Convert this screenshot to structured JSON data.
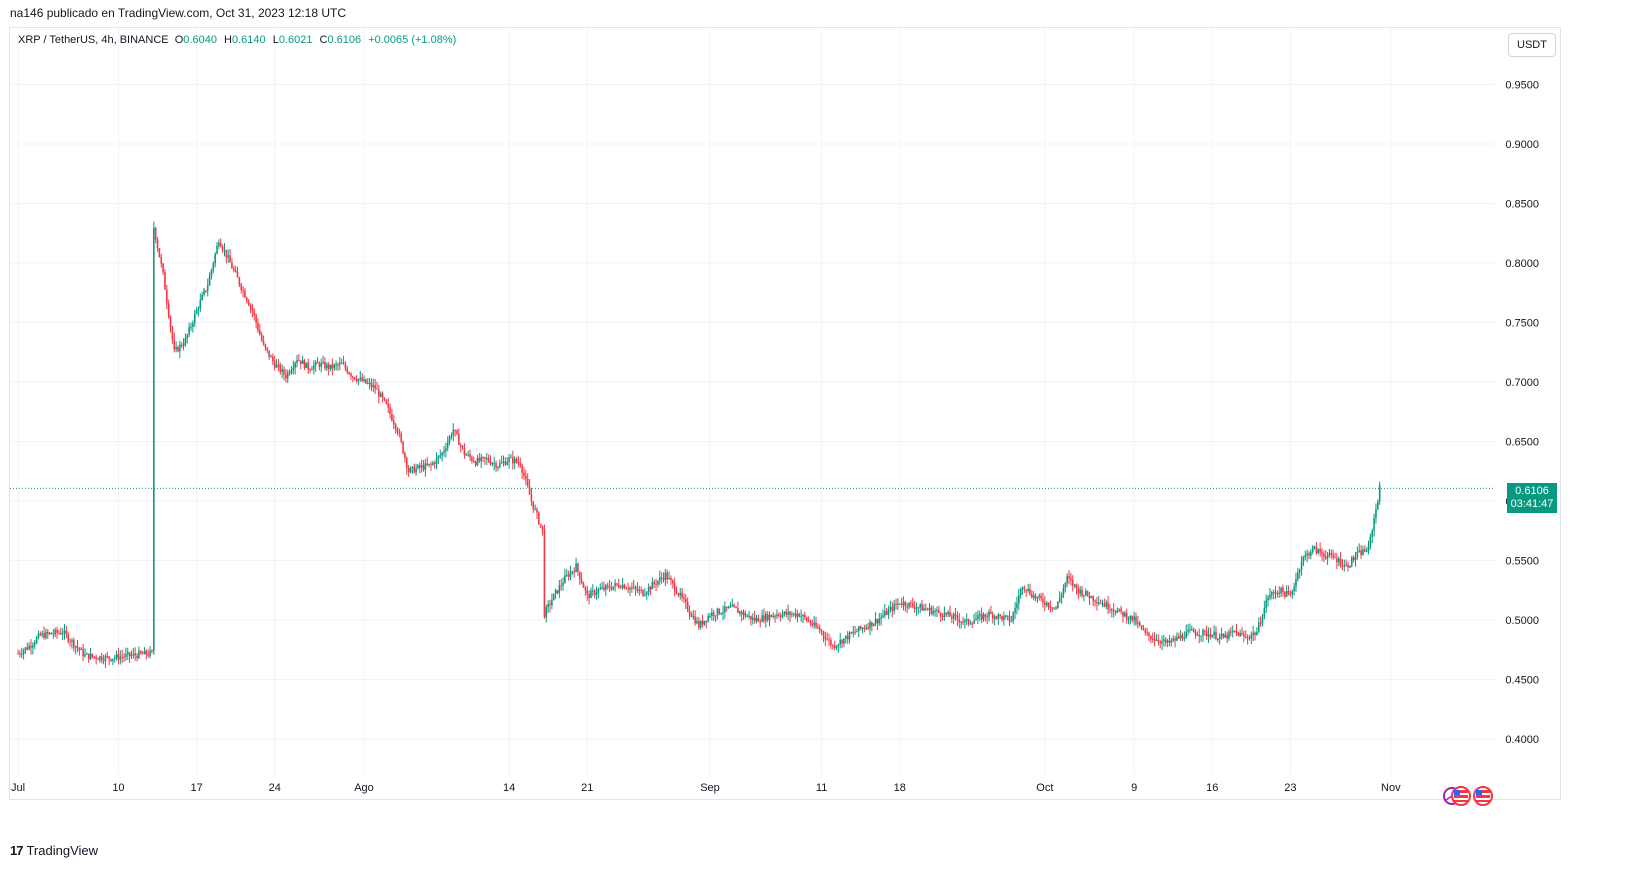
{
  "header": {
    "published_by": "na146 publicado en TradingView.com, Oct 31, 2023 12:18 UTC"
  },
  "legend": {
    "symbol": "XRP / TetherUS, 4h, BINANCE",
    "open_label": "O",
    "open": "0.6040",
    "high_label": "H",
    "high": "0.6140",
    "low_label": "L",
    "low": "0.6021",
    "close_label": "C",
    "close": "0.6106",
    "change": "+0.0065 (+1.08%)"
  },
  "currency_button": "USDT",
  "last_price": {
    "price": "0.6106",
    "countdown": "03:41:47"
  },
  "footer": {
    "brand": "TradingView",
    "logo": "17"
  },
  "colors": {
    "up": "#089981",
    "down": "#f23645",
    "grid": "#f0f3fa",
    "last_price_line": "#089981"
  },
  "icons": [
    "event-icon",
    "us-flag-icon",
    "us-flag-icon"
  ],
  "chart_data": {
    "type": "line",
    "title": "XRP / TetherUS, 4h, BINANCE",
    "ylim": [
      0.37,
      0.975
    ],
    "y_ticks": [
      "0.4000",
      "0.4500",
      "0.5000",
      "0.5500",
      "0.6000",
      "0.6500",
      "0.7000",
      "0.7500",
      "0.8000",
      "0.8500",
      "0.9000",
      "0.9500"
    ],
    "x_ticks": [
      "Jul",
      "10",
      "17",
      "24",
      "Ago",
      "14",
      "21",
      "Sep",
      "11",
      "18",
      "Oct",
      "9",
      "16",
      "23",
      "Nov"
    ],
    "grid": true,
    "series": [
      {
        "x": [
          "2023-07-01",
          "2023-07-02",
          "2023-07-03",
          "2023-07-05",
          "2023-07-07",
          "2023-07-09",
          "2023-07-11",
          "2023-07-13",
          "2023-07-13",
          "2023-07-14",
          "2023-07-15",
          "2023-07-16",
          "2023-07-17",
          "2023-07-18",
          "2023-07-19",
          "2023-07-20",
          "2023-07-21",
          "2023-07-22",
          "2023-07-23",
          "2023-07-24",
          "2023-07-25",
          "2023-07-26",
          "2023-07-27",
          "2023-07-28",
          "2023-07-29",
          "2023-07-30",
          "2023-07-31",
          "2023-08-01",
          "2023-08-02",
          "2023-08-03",
          "2023-08-04",
          "2023-08-05",
          "2023-08-06",
          "2023-08-07",
          "2023-08-08",
          "2023-08-09",
          "2023-08-10",
          "2023-08-11",
          "2023-08-12",
          "2023-08-13",
          "2023-08-14",
          "2023-08-15",
          "2023-08-16",
          "2023-08-17",
          "2023-08-17",
          "2023-08-18",
          "2023-08-19",
          "2023-08-20",
          "2023-08-21",
          "2023-08-22",
          "2023-08-24",
          "2023-08-26",
          "2023-08-28",
          "2023-08-29",
          "2023-08-30",
          "2023-08-31",
          "2023-09-01",
          "2023-09-03",
          "2023-09-05",
          "2023-09-07",
          "2023-09-09",
          "2023-09-11",
          "2023-09-12",
          "2023-09-14",
          "2023-09-16",
          "2023-09-18",
          "2023-09-20",
          "2023-09-22",
          "2023-09-24",
          "2023-09-26",
          "2023-09-28",
          "2023-09-29",
          "2023-09-30",
          "2023-10-01",
          "2023-10-02",
          "2023-10-03",
          "2023-10-04",
          "2023-10-05",
          "2023-10-06",
          "2023-10-08",
          "2023-10-09",
          "2023-10-10",
          "2023-10-12",
          "2023-10-14",
          "2023-10-16",
          "2023-10-17",
          "2023-10-18",
          "2023-10-19",
          "2023-10-20",
          "2023-10-21",
          "2023-10-22",
          "2023-10-23",
          "2023-10-24",
          "2023-10-25",
          "2023-10-26",
          "2023-10-27",
          "2023-10-28",
          "2023-10-29",
          "2023-10-30",
          "2023-10-31"
        ],
        "values": [
          0.472,
          0.478,
          0.487,
          0.49,
          0.47,
          0.468,
          0.47,
          0.472,
          0.83,
          0.79,
          0.725,
          0.735,
          0.76,
          0.782,
          0.82,
          0.8,
          0.78,
          0.76,
          0.73,
          0.715,
          0.705,
          0.72,
          0.712,
          0.715,
          0.712,
          0.715,
          0.705,
          0.7,
          0.695,
          0.68,
          0.66,
          0.625,
          0.628,
          0.63,
          0.64,
          0.66,
          0.64,
          0.633,
          0.635,
          0.63,
          0.635,
          0.632,
          0.6,
          0.575,
          0.505,
          0.52,
          0.535,
          0.545,
          0.52,
          0.525,
          0.53,
          0.523,
          0.538,
          0.525,
          0.51,
          0.495,
          0.505,
          0.51,
          0.5,
          0.505,
          0.505,
          0.49,
          0.478,
          0.49,
          0.5,
          0.515,
          0.51,
          0.505,
          0.498,
          0.505,
          0.5,
          0.53,
          0.52,
          0.515,
          0.51,
          0.535,
          0.525,
          0.52,
          0.515,
          0.505,
          0.5,
          0.488,
          0.48,
          0.49,
          0.488,
          0.485,
          0.49,
          0.485,
          0.49,
          0.52,
          0.525,
          0.52,
          0.55,
          0.56,
          0.555,
          0.552,
          0.545,
          0.555,
          0.56,
          0.6106
        ]
      }
    ]
  }
}
